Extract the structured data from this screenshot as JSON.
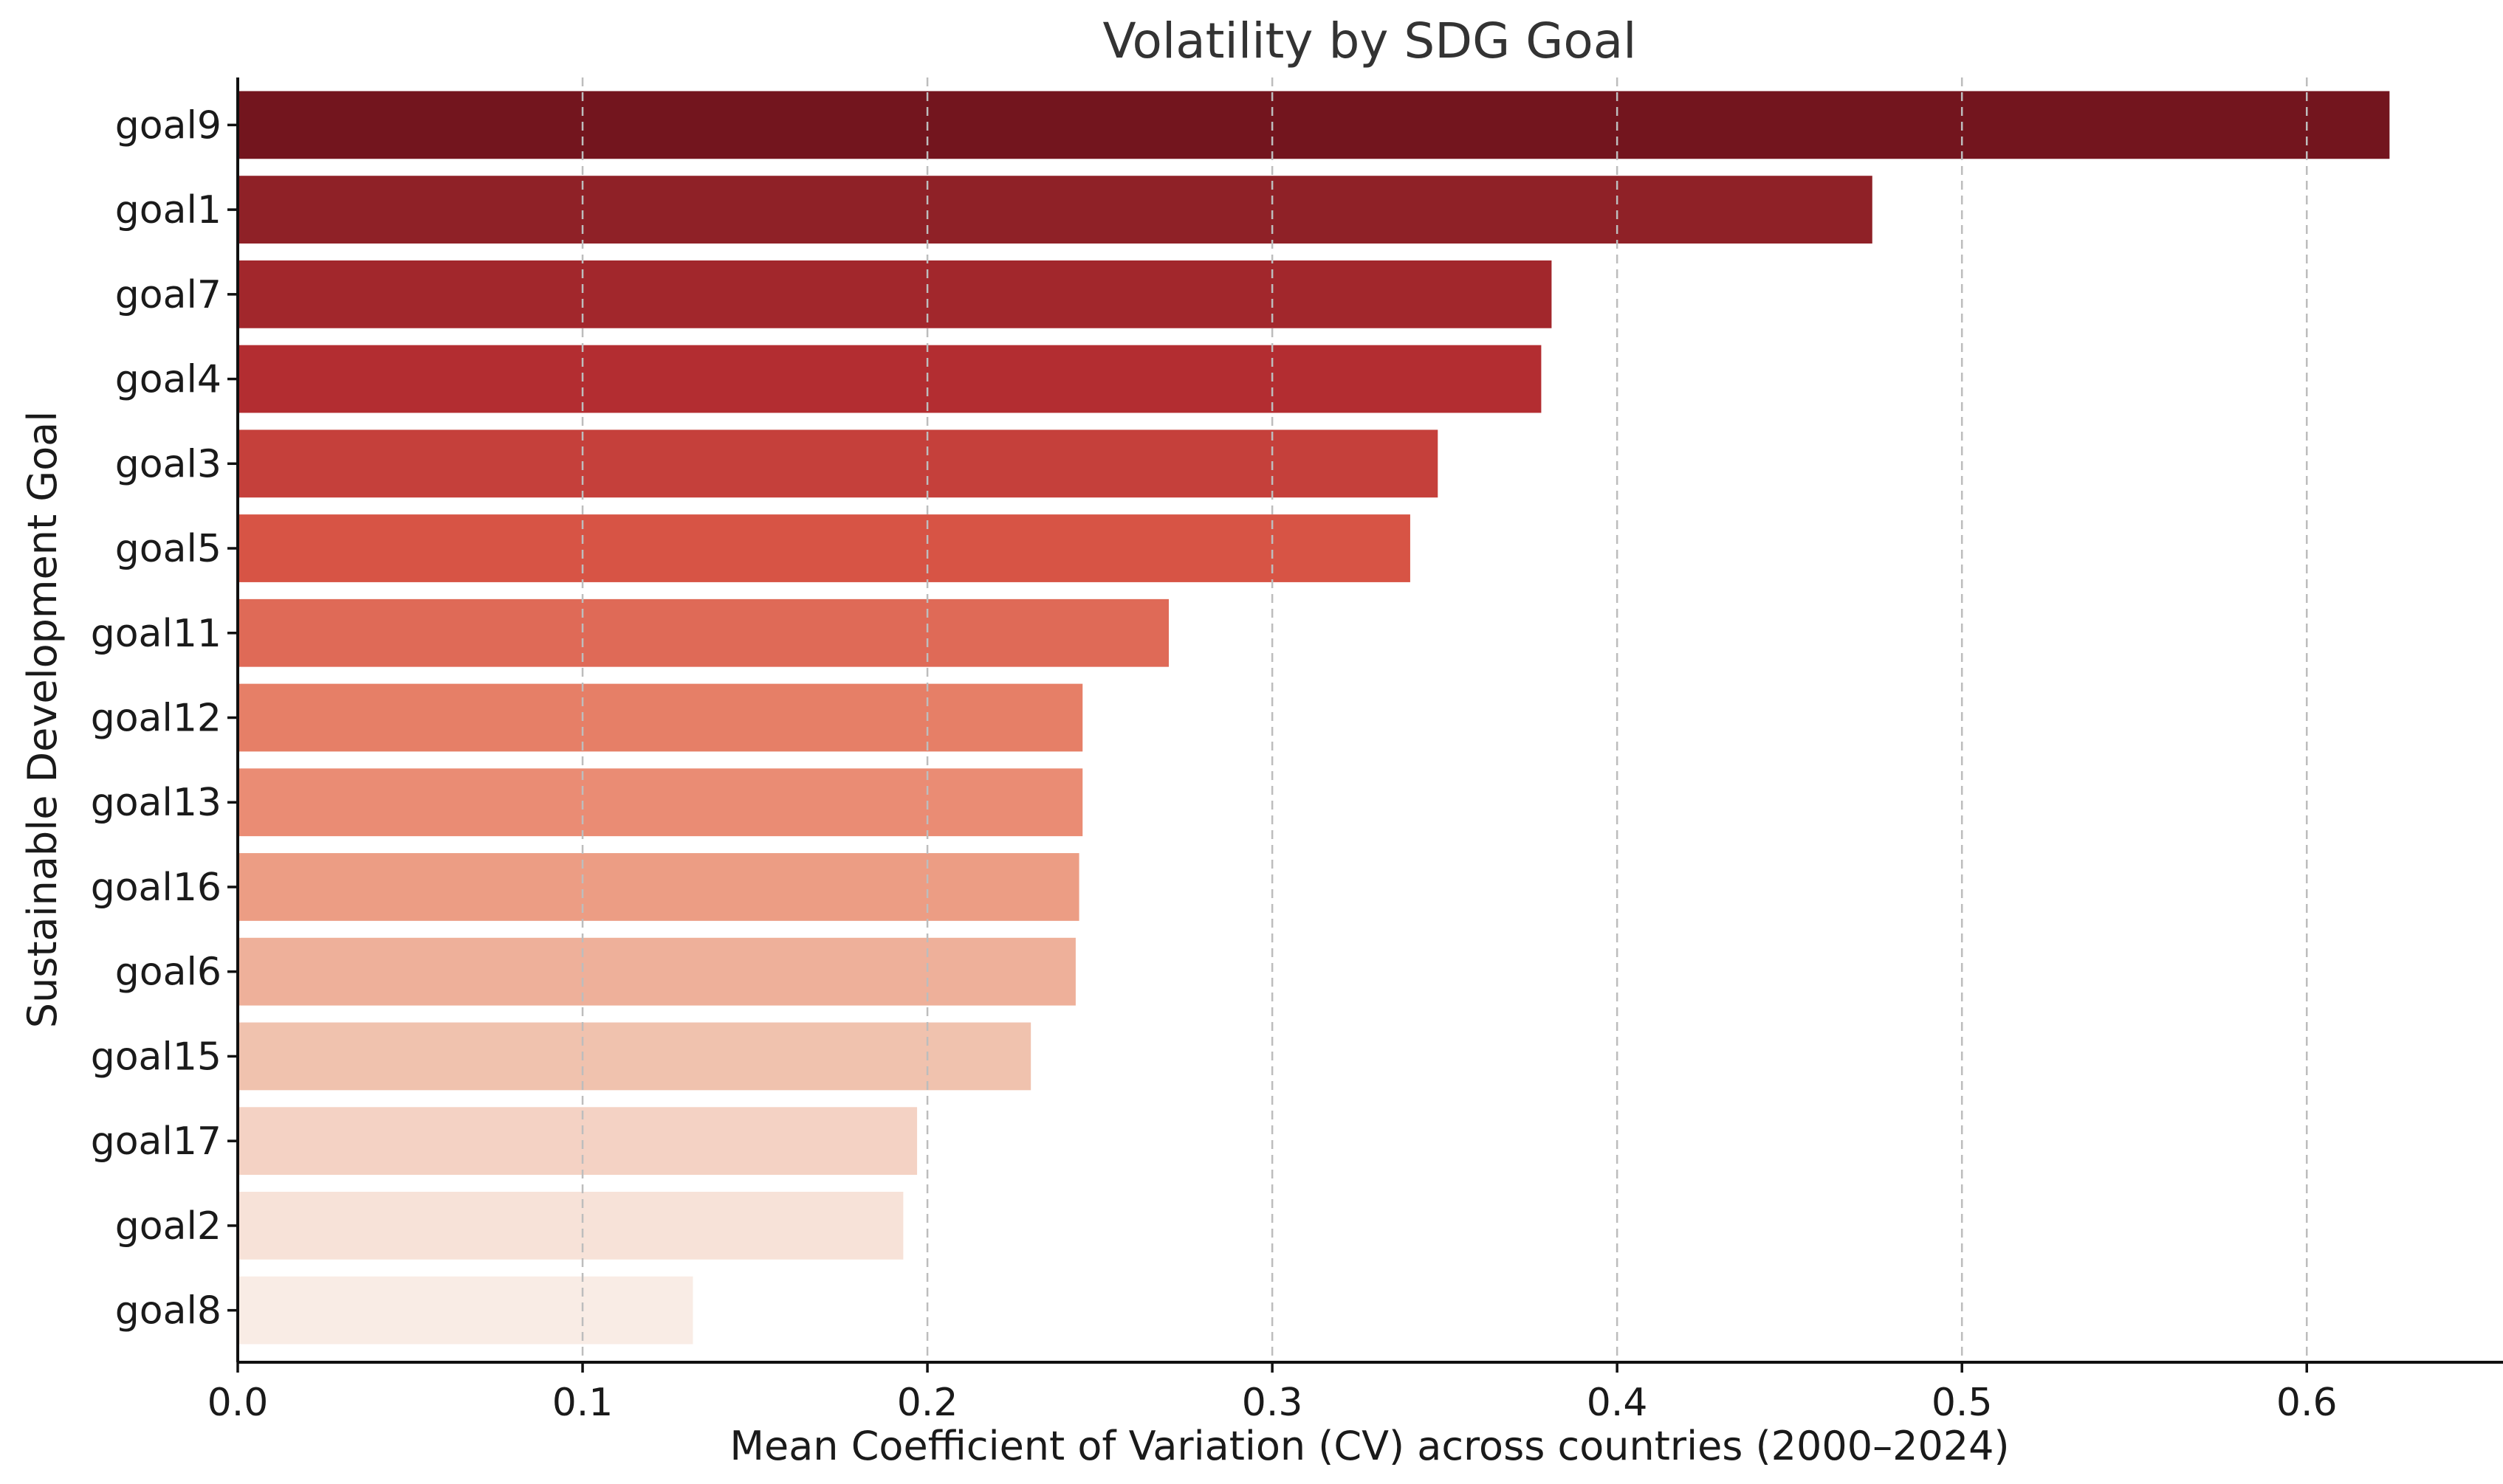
{
  "chart_data": {
    "type": "bar",
    "orientation": "horizontal",
    "title": "Volatility by SDG Goal",
    "xlabel": "Mean Coefficient of Variation (CV) across countries (2000–2024)",
    "ylabel": "Sustainable Development Goal",
    "xlim": [
      0,
      0.655
    ],
    "xticks": [
      0.0,
      0.1,
      0.2,
      0.3,
      0.4,
      0.5,
      0.6
    ],
    "xtick_labels": [
      "0.0",
      "0.1",
      "0.2",
      "0.3",
      "0.4",
      "0.5",
      "0.6"
    ],
    "grid": "x-dashed",
    "categories": [
      "goal9",
      "goal1",
      "goal7",
      "goal4",
      "goal3",
      "goal5",
      "goal11",
      "goal12",
      "goal13",
      "goal16",
      "goal6",
      "goal15",
      "goal17",
      "goal2",
      "goal8"
    ],
    "values": [
      0.624,
      0.474,
      0.381,
      0.378,
      0.348,
      0.34,
      0.27,
      0.245,
      0.245,
      0.244,
      0.243,
      0.23,
      0.197,
      0.193,
      0.132
    ],
    "colors": [
      "#73151e",
      "#8f2127",
      "#a2272c",
      "#b32d31",
      "#c5403b",
      "#d75445",
      "#df6a57",
      "#e67f67",
      "#ea8c74",
      "#ec9d84",
      "#eeb09a",
      "#f0c2ae",
      "#f4d2c4",
      "#f7e2d8",
      "#f9ece5"
    ]
  }
}
